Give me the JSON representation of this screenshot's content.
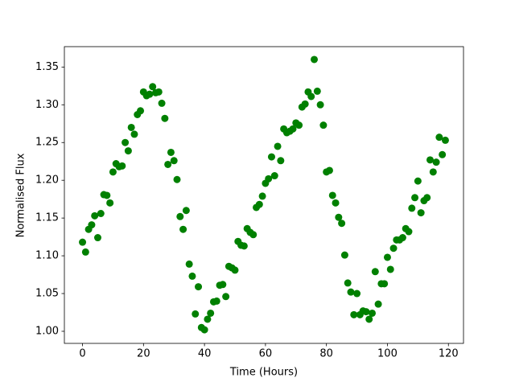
{
  "chart_data": {
    "type": "scatter",
    "xlabel": "Time (Hours)",
    "ylabel": "Normalised Flux",
    "color": "#008000",
    "x": [
      0,
      1,
      2,
      3,
      4,
      5,
      6,
      7,
      8,
      9,
      10,
      11,
      12,
      13,
      14,
      15,
      16,
      17,
      18,
      19,
      20,
      21,
      22,
      23,
      24,
      25,
      26,
      27,
      28,
      29,
      30,
      31,
      32,
      33,
      34,
      35,
      36,
      37,
      38,
      39,
      40,
      41,
      42,
      43,
      44,
      45,
      46,
      47,
      48,
      49,
      50,
      51,
      52,
      53,
      54,
      55,
      56,
      57,
      58,
      59,
      60,
      61,
      62,
      63,
      64,
      65,
      66,
      67,
      68,
      69,
      70,
      71,
      72,
      73,
      74,
      75,
      76,
      77,
      78,
      79,
      80,
      81,
      82,
      83,
      84,
      85,
      86,
      87,
      88,
      89,
      90,
      91,
      92,
      93,
      94,
      95,
      96,
      97,
      98,
      99,
      100,
      101,
      102,
      103,
      104,
      105,
      106,
      107,
      108,
      109,
      110,
      111,
      112,
      113,
      114,
      115,
      116,
      117,
      118,
      119
    ],
    "y": [
      1.118,
      1.105,
      1.135,
      1.141,
      1.153,
      1.124,
      1.156,
      1.181,
      1.18,
      1.17,
      1.211,
      1.222,
      1.218,
      1.219,
      1.25,
      1.239,
      1.27,
      1.261,
      1.287,
      1.292,
      1.317,
      1.312,
      1.314,
      1.324,
      1.316,
      1.317,
      1.302,
      1.282,
      1.221,
      1.237,
      1.226,
      1.201,
      1.152,
      1.135,
      1.16,
      1.089,
      1.073,
      1.023,
      1.059,
      1.005,
      1.002,
      1.016,
      1.024,
      1.039,
      1.04,
      1.061,
      1.062,
      1.046,
      1.086,
      1.084,
      1.081,
      1.119,
      1.114,
      1.113,
      1.136,
      1.131,
      1.128,
      1.164,
      1.168,
      1.179,
      1.196,
      1.202,
      1.231,
      1.206,
      1.245,
      1.226,
      1.268,
      1.263,
      1.265,
      1.268,
      1.276,
      1.273,
      1.297,
      1.301,
      1.317,
      1.311,
      1.36,
      1.318,
      1.3,
      1.273,
      1.211,
      1.213,
      1.18,
      1.17,
      1.151,
      1.143,
      1.101,
      1.064,
      1.052,
      1.022,
      1.05,
      1.022,
      1.027,
      1.026,
      1.016,
      1.024,
      1.079,
      1.036,
      1.063,
      1.063,
      1.098,
      1.082,
      1.11,
      1.121,
      1.121,
      1.124,
      1.136,
      1.132,
      1.163,
      1.177,
      1.199,
      1.157,
      1.173,
      1.177,
      1.227,
      1.211,
      1.224,
      1.257,
      1.234,
      1.253
    ],
    "xlim": [
      -5.95,
      124.95
    ],
    "ylim": [
      0.984,
      1.377
    ],
    "xticks": [
      0,
      20,
      40,
      60,
      80,
      100,
      120
    ],
    "yticks": [
      {
        "value": 1.0,
        "label": "1.00"
      },
      1.05,
      {
        "value": 1.1,
        "label": "1.10"
      },
      1.15,
      {
        "value": 1.2,
        "label": "1.20"
      },
      1.25,
      {
        "value": 1.3,
        "label": "1.30"
      },
      1.35
    ]
  }
}
